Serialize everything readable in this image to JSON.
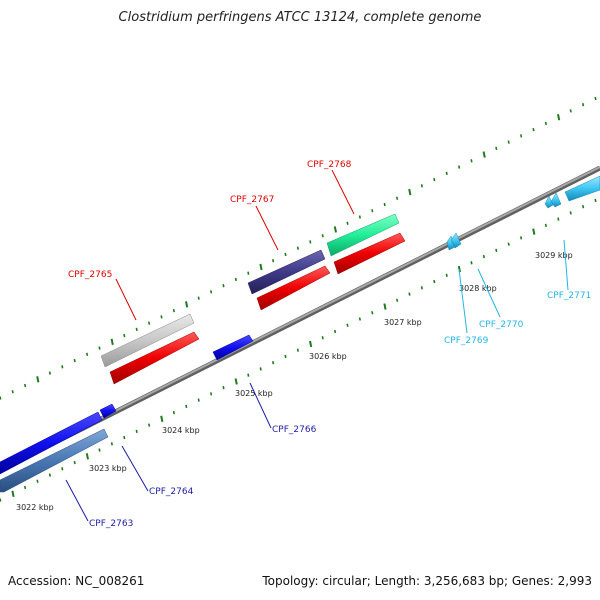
{
  "title": "Clostridium perfringens ATCC 13124, complete genome",
  "footer": {
    "accession": "Accession: NC_008261",
    "summary": "Topology: circular; Length: 3,256,683 bp; Genes: 2,993"
  },
  "colors": {
    "backbone": "#8a8a8a",
    "tick": "#1f7a1f",
    "label_red": "#dd0000",
    "label_blue": "#1c1ca8",
    "label_cyan": "#22b6e6"
  },
  "kbp_labels": [
    "3022 kbp",
    "3023 kbp",
    "3024 kbp",
    "3025 kbp",
    "3026 kbp",
    "3027 kbp",
    "3028 kbp",
    "3029 kbp"
  ],
  "gene_labels": {
    "cpf_2763": "CPF_2763",
    "cpf_2764": "CPF_2764",
    "cpf_2765": "CPF_2765",
    "cpf_2766": "CPF_2766",
    "cpf_2767": "CPF_2767",
    "cpf_2768": "CPF_2768",
    "cpf_2769": "CPF_2769",
    "cpf_2770": "CPF_2770",
    "cpf_2771": "CPF_2771"
  }
}
